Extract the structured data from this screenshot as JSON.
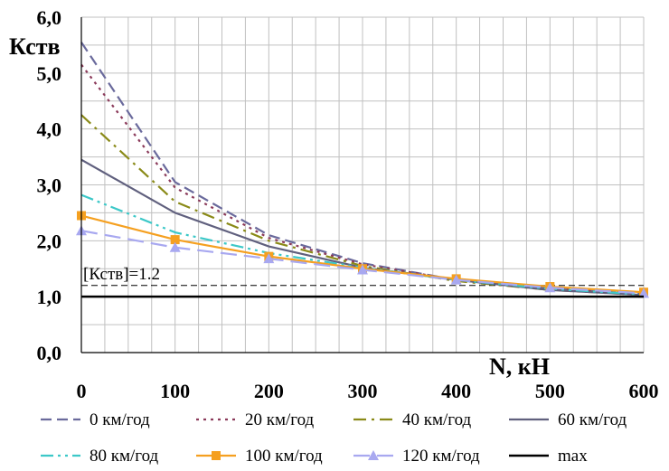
{
  "chart_data": {
    "type": "line",
    "ylabel": "Кств",
    "xlabel": "N, кН",
    "xlim": [
      0,
      600
    ],
    "ylim": [
      0,
      6
    ],
    "xticks": [
      "0",
      "100",
      "200",
      "300",
      "400",
      "500",
      "600"
    ],
    "yticks": [
      "0,0",
      "1,0",
      "2,0",
      "3,0",
      "4,0",
      "5,0",
      "6,0"
    ],
    "grid": true,
    "legend_position": "bottom",
    "annotation": {
      "text": "[Кств]=1.2",
      "y": 1.2
    },
    "x": [
      0,
      100,
      200,
      300,
      400,
      500,
      600
    ],
    "series": [
      {
        "name": "0 км/год",
        "color": "#6a6a9c",
        "style": "dash",
        "values": [
          5.55,
          3.05,
          2.1,
          1.6,
          1.3,
          1.15,
          1.05
        ]
      },
      {
        "name": "20 км/год",
        "color": "#8b3a5a",
        "style": "dot",
        "values": [
          5.15,
          2.95,
          2.05,
          1.58,
          1.3,
          1.15,
          1.05
        ]
      },
      {
        "name": "40 км/год",
        "color": "#8a8a18",
        "style": "dashdot",
        "values": [
          4.25,
          2.7,
          2.0,
          1.55,
          1.28,
          1.12,
          1.03
        ]
      },
      {
        "name": "60 км/год",
        "color": "#60607e",
        "style": "solid",
        "values": [
          3.45,
          2.5,
          1.9,
          1.52,
          1.3,
          1.12,
          1.03
        ]
      },
      {
        "name": "80 км/год",
        "color": "#3cc8c8",
        "style": "dashdotdot",
        "values": [
          2.82,
          2.15,
          1.78,
          1.52,
          1.3,
          1.14,
          1.04
        ]
      },
      {
        "name": "100 км/год",
        "color": "#f5a020",
        "style": "solid",
        "marker": "square",
        "values": [
          2.45,
          2.02,
          1.72,
          1.5,
          1.32,
          1.18,
          1.08
        ]
      },
      {
        "name": "120 км/год",
        "color": "#a8a8f0",
        "style": "longdash",
        "marker": "triangle",
        "values": [
          2.18,
          1.88,
          1.68,
          1.48,
          1.3,
          1.16,
          1.06
        ]
      },
      {
        "name": "max",
        "color": "#000000",
        "style": "solid",
        "values": [
          1.0,
          1.0,
          1.0,
          1.0,
          1.0,
          1.0,
          1.0
        ]
      }
    ]
  }
}
